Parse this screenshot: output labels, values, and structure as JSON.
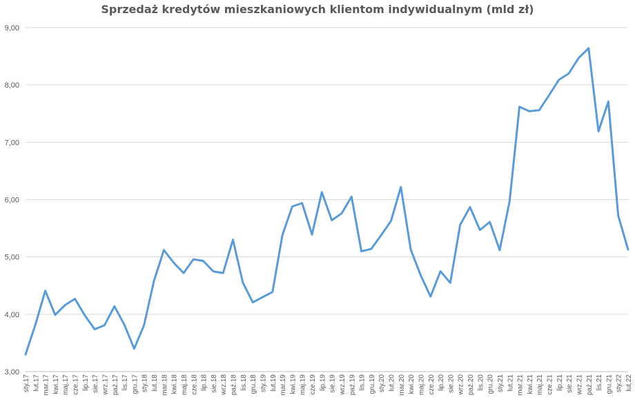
{
  "chart_data": {
    "type": "line",
    "title": "Sprzedaż kredytów mieszkaniowych klientom indywidualnym (mld zł)",
    "xlabel": "",
    "ylabel": "",
    "ylim": [
      3,
      9
    ],
    "yticks": [
      "3,00",
      "4,00",
      "5,00",
      "6,00",
      "7,00",
      "8,00",
      "9,00"
    ],
    "ytick_values": [
      3,
      4,
      5,
      6,
      7,
      8,
      9
    ],
    "grid": true,
    "legend": "none",
    "line_color": "#5B9BD5",
    "categories": [
      "sty.17",
      "lut.17",
      "mar.17",
      "kwi.17",
      "maj.17",
      "cze.17",
      "lip.17",
      "sie.17",
      "wrz.17",
      "paź.17",
      "lis.17",
      "gru.17",
      "sty.18",
      "lut.18",
      "mar.18",
      "kwi.18",
      "maj.18",
      "cze.18",
      "lip.18",
      "sie.18",
      "wrz.18",
      "paź.18",
      "lis.18",
      "gru.18",
      "sty.19",
      "lut.19",
      "mar.19",
      "kwi.19",
      "maj.19",
      "cze.19",
      "lip.19",
      "sie.19",
      "wrz.19",
      "paź.19",
      "lis.19",
      "gru.19",
      "sty.20",
      "lut.20",
      "mar.20",
      "kwi.20",
      "maj.20",
      "cze.20",
      "lip.20",
      "sie.20",
      "wrz.20",
      "paź.20",
      "lis.20",
      "gru.20",
      "sty.21",
      "lut.21",
      "mar.21",
      "kwi.21",
      "maj.21",
      "cze.21",
      "lip.21",
      "sie.21",
      "wrz.21",
      "paź.21",
      "lis.21",
      "gru.21",
      "sty.22",
      "lut.22"
    ],
    "series": [
      {
        "values": [
          3.3,
          3.82,
          4.41,
          3.99,
          4.16,
          4.27,
          3.98,
          3.74,
          3.81,
          4.14,
          3.82,
          3.4,
          3.81,
          4.58,
          5.12,
          4.9,
          4.72,
          4.96,
          4.93,
          4.75,
          4.72,
          5.3,
          4.55,
          4.21,
          4.3,
          4.39,
          5.38,
          5.88,
          5.94,
          5.39,
          6.13,
          5.64,
          5.76,
          6.05,
          5.1,
          5.14,
          5.38,
          5.63,
          6.22,
          5.13,
          4.68,
          4.31,
          4.75,
          4.55,
          5.56,
          5.87,
          5.47,
          5.61,
          5.12,
          5.97,
          7.62,
          7.54,
          7.56,
          7.82,
          8.09,
          8.2,
          8.47,
          8.64,
          7.19,
          7.71,
          5.72,
          5.13
        ]
      }
    ]
  }
}
